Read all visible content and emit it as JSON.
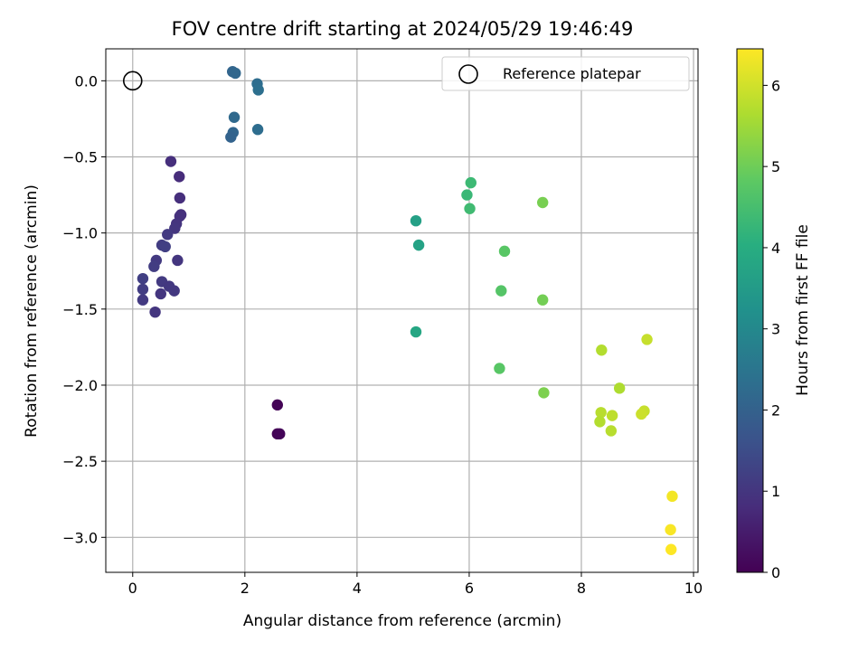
{
  "chart_data": {
    "type": "scatter",
    "title": "FOV centre drift starting at 2024/05/29 19:46:49",
    "xlabel": "Angular distance from reference (arcmin)",
    "ylabel": "Rotation from reference (arcmin)",
    "xlim": [
      -0.48,
      10.08
    ],
    "ylim": [
      -3.23,
      0.21
    ],
    "xticks": [
      0,
      2,
      4,
      6,
      8,
      10
    ],
    "yticks": [
      0.0,
      -0.5,
      -1.0,
      -1.5,
      -2.0,
      -2.5,
      -3.0
    ],
    "xtick_labels": [
      "0",
      "2",
      "4",
      "6",
      "8",
      "10"
    ],
    "ytick_labels": [
      "0.0",
      "−0.5",
      "−1.0",
      "−1.5",
      "−2.0",
      "−2.5",
      "−3.0"
    ],
    "grid": true,
    "colormap": "viridis",
    "reference": {
      "x": 0,
      "y": 0,
      "label": "Reference platepar"
    },
    "legend": {
      "position": "top-right",
      "entries": [
        "Reference platepar"
      ]
    },
    "colorbar": {
      "label": "Hours from first FF file",
      "range": [
        0,
        6.45
      ],
      "ticks": [
        0,
        1,
        2,
        3,
        4,
        5,
        6
      ],
      "tick_labels": [
        "0",
        "1",
        "2",
        "3",
        "4",
        "5",
        "6"
      ]
    },
    "points": [
      {
        "x": 2.58,
        "y": -2.13,
        "c": 0.05
      },
      {
        "x": 2.58,
        "y": -2.32,
        "c": 0.05
      },
      {
        "x": 2.62,
        "y": -2.32,
        "c": 0.08
      },
      {
        "x": 0.68,
        "y": -0.53,
        "c": 0.85
      },
      {
        "x": 0.83,
        "y": -0.63,
        "c": 0.8
      },
      {
        "x": 0.84,
        "y": -0.77,
        "c": 0.85
      },
      {
        "x": 0.86,
        "y": -0.88,
        "c": 0.88
      },
      {
        "x": 0.84,
        "y": -0.89,
        "c": 0.9
      },
      {
        "x": 0.78,
        "y": -0.94,
        "c": 0.95
      },
      {
        "x": 0.75,
        "y": -0.97,
        "c": 1.0
      },
      {
        "x": 0.62,
        "y": -1.01,
        "c": 1.1
      },
      {
        "x": 0.52,
        "y": -1.08,
        "c": 1.15
      },
      {
        "x": 0.58,
        "y": -1.09,
        "c": 1.2
      },
      {
        "x": 0.8,
        "y": -1.18,
        "c": 1.0
      },
      {
        "x": 0.42,
        "y": -1.18,
        "c": 1.1
      },
      {
        "x": 0.38,
        "y": -1.22,
        "c": 1.15
      },
      {
        "x": 0.18,
        "y": -1.3,
        "c": 1.2
      },
      {
        "x": 0.52,
        "y": -1.32,
        "c": 1.1
      },
      {
        "x": 0.65,
        "y": -1.35,
        "c": 1.05
      },
      {
        "x": 0.74,
        "y": -1.38,
        "c": 1.05
      },
      {
        "x": 0.5,
        "y": -1.4,
        "c": 1.0
      },
      {
        "x": 0.18,
        "y": -1.37,
        "c": 1.15
      },
      {
        "x": 0.18,
        "y": -1.44,
        "c": 1.1
      },
      {
        "x": 0.4,
        "y": -1.52,
        "c": 1.0
      },
      {
        "x": 1.78,
        "y": 0.06,
        "c": 2.1
      },
      {
        "x": 1.83,
        "y": 0.05,
        "c": 2.15
      },
      {
        "x": 2.22,
        "y": -0.02,
        "c": 2.3
      },
      {
        "x": 2.24,
        "y": -0.06,
        "c": 2.35
      },
      {
        "x": 1.81,
        "y": -0.24,
        "c": 2.2
      },
      {
        "x": 2.23,
        "y": -0.32,
        "c": 2.3
      },
      {
        "x": 1.79,
        "y": -0.34,
        "c": 2.1
      },
      {
        "x": 1.75,
        "y": -0.37,
        "c": 2.05
      },
      {
        "x": 5.05,
        "y": -0.92,
        "c": 3.65
      },
      {
        "x": 5.1,
        "y": -1.08,
        "c": 3.7
      },
      {
        "x": 5.05,
        "y": -1.65,
        "c": 3.8
      },
      {
        "x": 6.03,
        "y": -0.67,
        "c": 4.35
      },
      {
        "x": 5.96,
        "y": -0.75,
        "c": 4.3
      },
      {
        "x": 6.01,
        "y": -0.84,
        "c": 4.4
      },
      {
        "x": 6.63,
        "y": -1.12,
        "c": 4.75
      },
      {
        "x": 6.57,
        "y": -1.38,
        "c": 4.7
      },
      {
        "x": 6.54,
        "y": -1.89,
        "c": 4.75
      },
      {
        "x": 7.31,
        "y": -0.8,
        "c": 5.1
      },
      {
        "x": 7.31,
        "y": -1.44,
        "c": 5.05
      },
      {
        "x": 7.33,
        "y": -2.05,
        "c": 5.15
      },
      {
        "x": 8.36,
        "y": -1.77,
        "c": 5.7
      },
      {
        "x": 9.17,
        "y": -1.7,
        "c": 5.9
      },
      {
        "x": 8.68,
        "y": -2.02,
        "c": 5.65
      },
      {
        "x": 8.35,
        "y": -2.18,
        "c": 5.75
      },
      {
        "x": 8.55,
        "y": -2.2,
        "c": 5.8
      },
      {
        "x": 9.12,
        "y": -2.17,
        "c": 5.9
      },
      {
        "x": 9.07,
        "y": -2.19,
        "c": 5.95
      },
      {
        "x": 8.33,
        "y": -2.24,
        "c": 5.7
      },
      {
        "x": 8.53,
        "y": -2.3,
        "c": 5.75
      },
      {
        "x": 9.62,
        "y": -2.73,
        "c": 6.35
      },
      {
        "x": 9.59,
        "y": -2.95,
        "c": 6.4
      },
      {
        "x": 9.6,
        "y": -3.08,
        "c": 6.45
      }
    ]
  }
}
